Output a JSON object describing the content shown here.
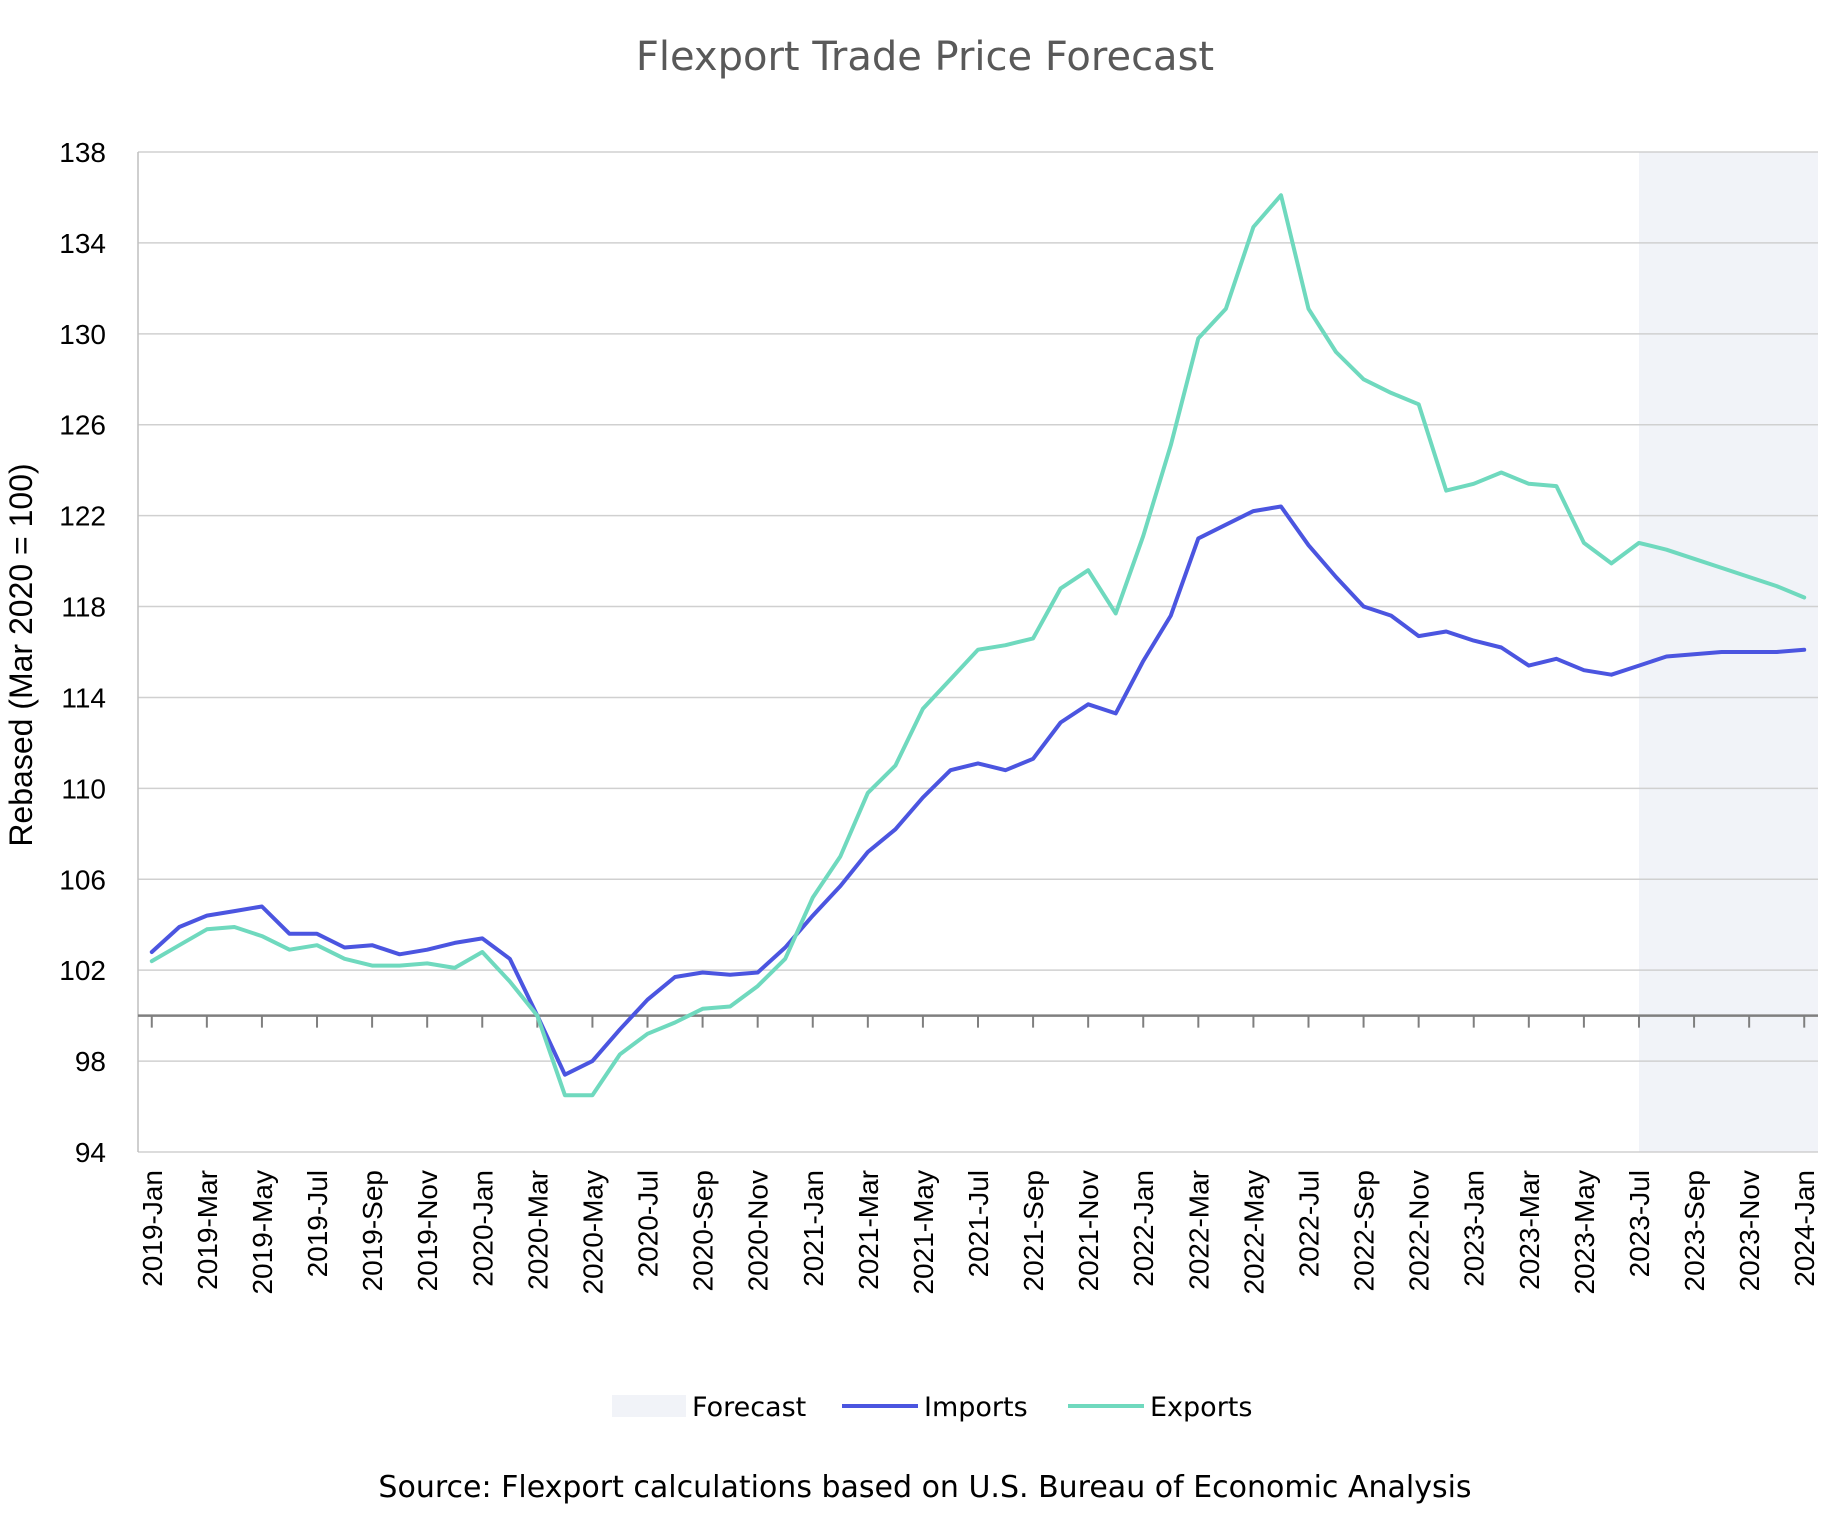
{
  "chart_data": {
    "type": "line",
    "title": "Flexport Trade Price Forecast",
    "xlabel": "",
    "ylabel": "Rebased (Mar 2020 = 100)",
    "ylim": [
      94,
      138
    ],
    "yticks": [
      94,
      98,
      102,
      106,
      110,
      114,
      118,
      122,
      126,
      130,
      134,
      138
    ],
    "baseline": 100,
    "grid": "horizontal",
    "x": [
      "2019-Jan",
      "2019-Feb",
      "2019-Mar",
      "2019-Apr",
      "2019-May",
      "2019-Jun",
      "2019-Jul",
      "2019-Aug",
      "2019-Sep",
      "2019-Oct",
      "2019-Nov",
      "2019-Dec",
      "2020-Jan",
      "2020-Feb",
      "2020-Mar",
      "2020-Apr",
      "2020-May",
      "2020-Jun",
      "2020-Jul",
      "2020-Aug",
      "2020-Sep",
      "2020-Oct",
      "2020-Nov",
      "2020-Dec",
      "2021-Jan",
      "2021-Feb",
      "2021-Mar",
      "2021-Apr",
      "2021-May",
      "2021-Jun",
      "2021-Jul",
      "2021-Aug",
      "2021-Sep",
      "2021-Oct",
      "2021-Nov",
      "2021-Dec",
      "2022-Jan",
      "2022-Feb",
      "2022-Mar",
      "2022-Apr",
      "2022-May",
      "2022-Jun",
      "2022-Jul",
      "2022-Aug",
      "2022-Sep",
      "2022-Oct",
      "2022-Nov",
      "2022-Dec",
      "2023-Jan",
      "2023-Feb",
      "2023-Mar",
      "2023-Apr",
      "2023-May",
      "2023-Jun",
      "2023-Jul",
      "2023-Aug",
      "2023-Sep",
      "2023-Oct",
      "2023-Nov",
      "2023-Dec",
      "2024-Jan"
    ],
    "xtick_labels": [
      "2019-Jan",
      "2019-Mar",
      "2019-May",
      "2019-Jul",
      "2019-Sep",
      "2019-Nov",
      "2020-Jan",
      "2020-Mar",
      "2020-May",
      "2020-Jul",
      "2020-Sep",
      "2020-Nov",
      "2021-Jan",
      "2021-Mar",
      "2021-May",
      "2021-Jul",
      "2021-Sep",
      "2021-Nov",
      "2022-Jan",
      "2022-Mar",
      "2022-May",
      "2022-Jul",
      "2022-Sep",
      "2022-Nov",
      "2023-Jan",
      "2023-Mar",
      "2023-May",
      "2023-Jul",
      "2023-Sep",
      "2023-Nov",
      "2024-Jan"
    ],
    "forecast_start": "2023-Jul",
    "forecast_end": "2024-Jan",
    "series": [
      {
        "name": "Imports",
        "color": "#4B55E0",
        "values": [
          102.8,
          103.9,
          104.4,
          104.6,
          104.8,
          103.6,
          103.6,
          103.0,
          103.1,
          102.7,
          102.9,
          103.2,
          103.4,
          102.5,
          100.0,
          97.4,
          98.0,
          99.4,
          100.7,
          101.7,
          101.9,
          101.8,
          101.9,
          103.0,
          104.4,
          105.7,
          107.2,
          108.2,
          109.6,
          110.8,
          111.1,
          110.8,
          111.3,
          112.9,
          113.7,
          113.3,
          115.6,
          117.6,
          121.0,
          121.6,
          122.2,
          122.4,
          120.7,
          119.3,
          118.0,
          117.6,
          116.7,
          116.9,
          116.5,
          116.2,
          115.4,
          115.7,
          115.2,
          115.0,
          115.4,
          115.8,
          115.9,
          116.0,
          116.0,
          116.0,
          116.1
        ]
      },
      {
        "name": "Exports",
        "color": "#6FD9BE",
        "values": [
          102.4,
          103.1,
          103.8,
          103.9,
          103.5,
          102.9,
          103.1,
          102.5,
          102.2,
          102.2,
          102.3,
          102.1,
          102.8,
          101.5,
          100.0,
          96.5,
          96.5,
          98.3,
          99.2,
          99.7,
          100.3,
          100.4,
          101.3,
          102.5,
          105.2,
          107.0,
          109.8,
          111.0,
          113.5,
          114.8,
          116.1,
          116.3,
          116.6,
          118.8,
          119.6,
          117.7,
          121.1,
          125.1,
          129.8,
          131.1,
          134.7,
          136.1,
          131.1,
          129.2,
          128.0,
          127.4,
          126.9,
          123.1,
          123.4,
          123.9,
          123.4,
          123.3,
          120.8,
          119.9,
          120.8,
          120.5,
          120.1,
          119.7,
          119.3,
          118.9,
          118.4
        ]
      }
    ],
    "legend": {
      "position": "bottom",
      "entries": [
        "Forecast",
        "Imports",
        "Exports"
      ]
    },
    "forecast_color": "#F1F3F8"
  },
  "footer": {
    "source": "Source: Flexport calculations based on U.S. Bureau of Economic Analysis"
  }
}
